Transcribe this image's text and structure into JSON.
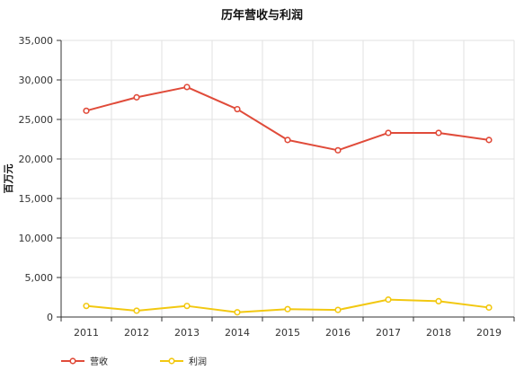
{
  "chart_data": {
    "type": "line",
    "title": "历年营收与利润",
    "xlabel": "",
    "ylabel": "百万元",
    "categories": [
      "2011",
      "2012",
      "2013",
      "2014",
      "2015",
      "2016",
      "2017",
      "2018",
      "2019"
    ],
    "ylim": [
      0,
      35000
    ],
    "yticks": [
      0,
      5000,
      10000,
      15000,
      20000,
      25000,
      30000,
      35000
    ],
    "ytick_labels": [
      "0",
      "5,000",
      "10,000",
      "15,000",
      "20,000",
      "25,000",
      "30,000",
      "35,000"
    ],
    "grid": true,
    "legend_position": "bottom-left",
    "series": [
      {
        "name": "营收",
        "color": "#e04b3a",
        "values": [
          26100,
          27800,
          29100,
          26300,
          22400,
          21100,
          23300,
          23300,
          22400
        ]
      },
      {
        "name": "利润",
        "color": "#f2c811",
        "values": [
          1400,
          800,
          1400,
          600,
          1000,
          900,
          2200,
          2000,
          1200
        ]
      }
    ]
  }
}
